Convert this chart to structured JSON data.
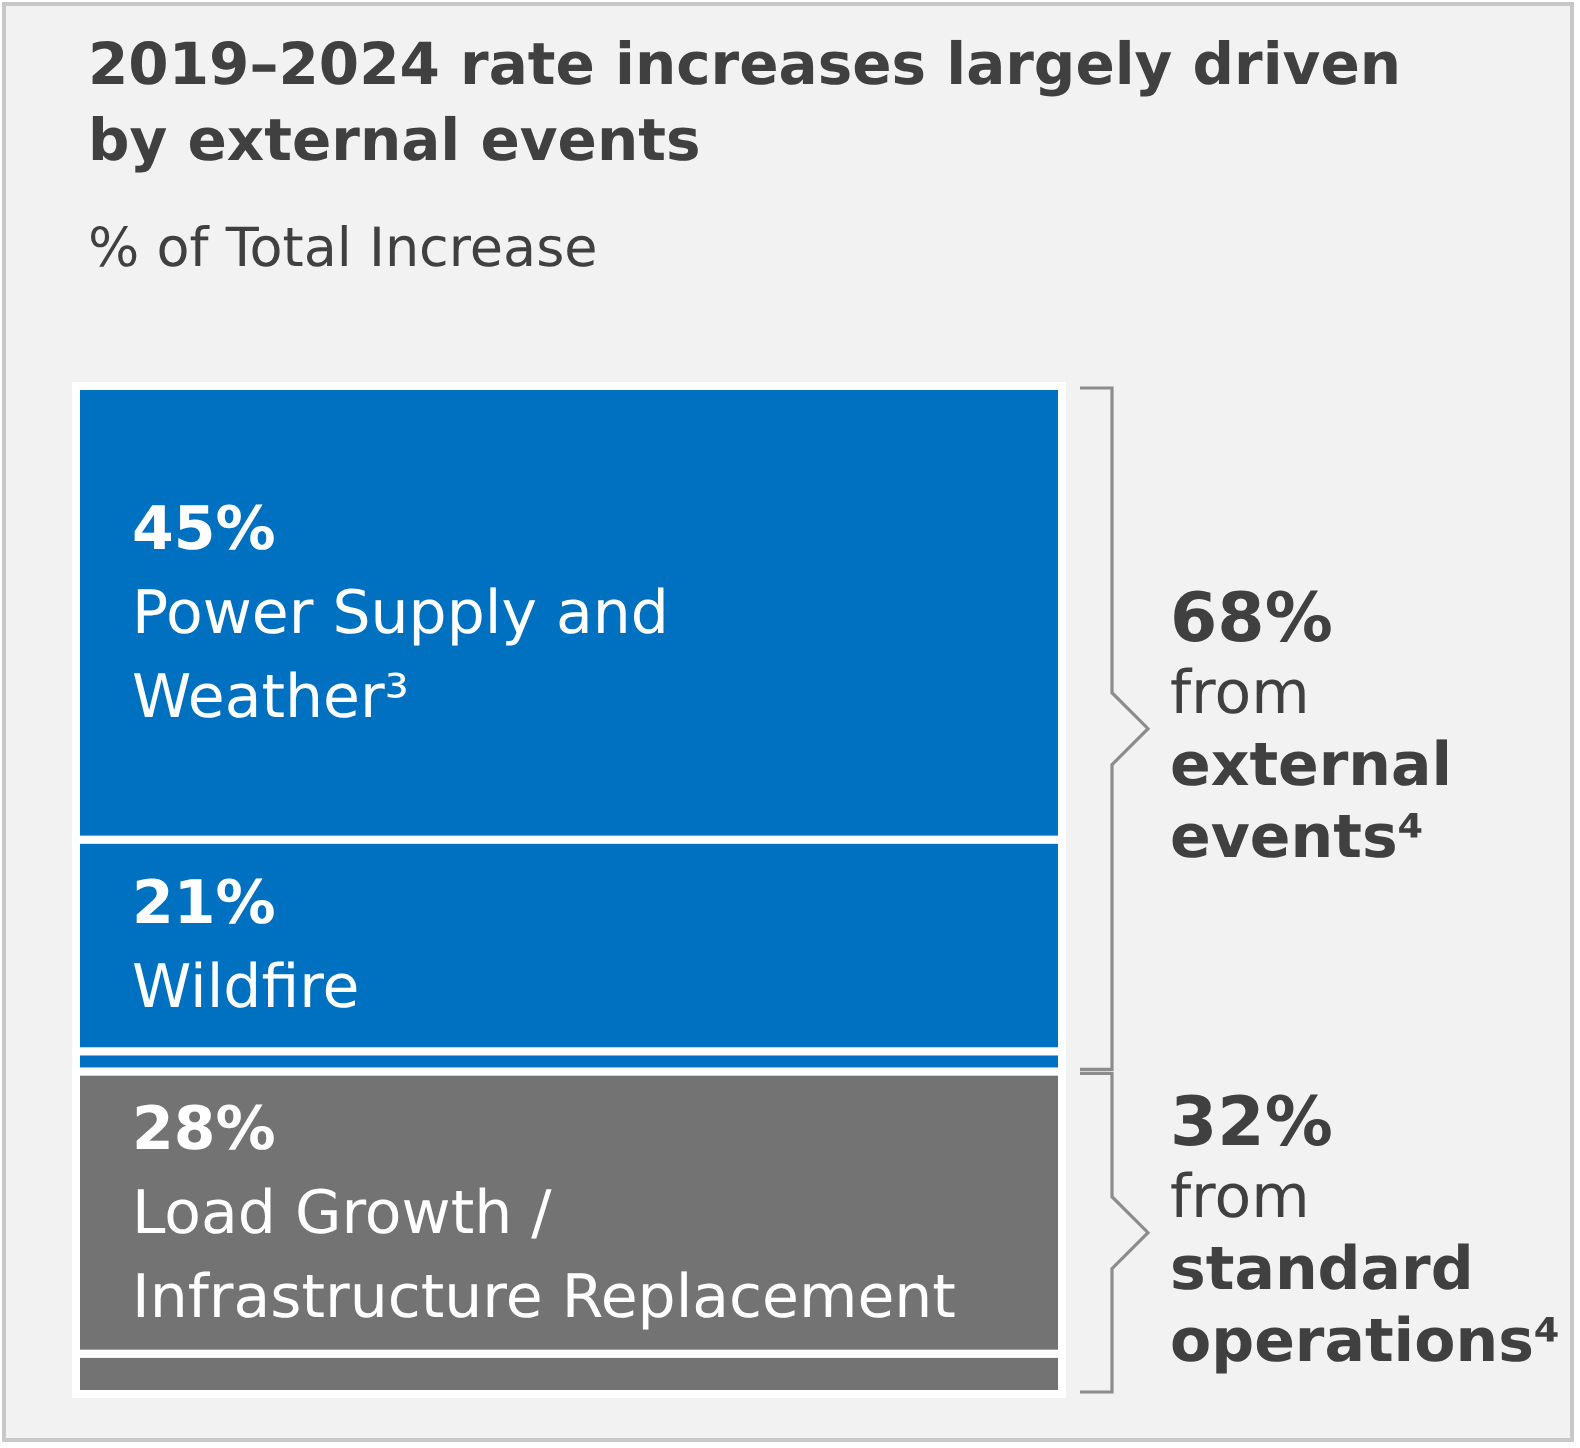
{
  "chart_data": {
    "type": "bar",
    "stacked": true,
    "title": "2019–2024 rate increases largely driven by external events",
    "subtitle": "% of Total Increase",
    "categories": [
      null
    ],
    "tick_labels": false,
    "series": [
      {
        "color": "#737373",
        "values": [
          4
        ],
        "value_labels": [
          null
        ]
      },
      {
        "name": "Load Growth / Infrastructure Replacement",
        "color": "#737373",
        "values": [
          28
        ],
        "value_labels": [
          "28%"
        ]
      },
      {
        "color": "#0070c0",
        "values": [
          2
        ],
        "value_labels": [
          null
        ]
      },
      {
        "name": "Wildfire",
        "color": "#0070c0",
        "values": [
          21
        ],
        "value_labels": [
          "21%"
        ]
      },
      {
        "name": "Power Supply and Weather³",
        "color": "#0070c0",
        "values": [
          45
        ],
        "value_labels": [
          "45%"
        ]
      }
    ],
    "annotations": [
      "68% from external events⁴",
      "32% from standard operations⁴"
    ]
  }
}
